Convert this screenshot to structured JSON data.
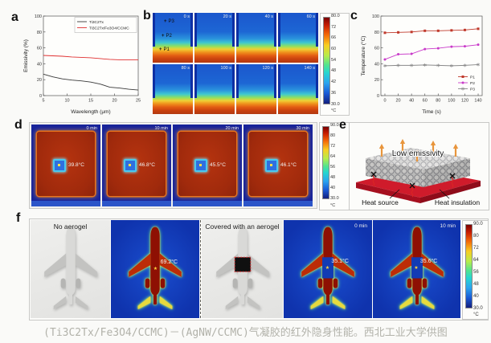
{
  "figure": {
    "caption": "(Ti3C2Tx/Fe3O4/CCMC)－(AgNW/CCMC)气凝胶的红外隐身性能。西北工业大学供图",
    "panels": {
      "a": {
        "label": "a"
      },
      "b": {
        "label": "b",
        "frames": [
          {
            "time": "0 s"
          },
          {
            "time": "20 s"
          },
          {
            "time": "40 s"
          },
          {
            "time": "60 s"
          },
          {
            "time": "80 s"
          },
          {
            "time": "100 s"
          },
          {
            "time": "120 s"
          },
          {
            "time": "140 s"
          }
        ],
        "markers": [
          {
            "symbol": "+",
            "label": "P3"
          },
          {
            "symbol": "+",
            "label": "P2"
          },
          {
            "symbol": "+",
            "label": "P1"
          }
        ],
        "colorbar": {
          "ticks": [
            "80.0",
            "72",
            "66",
            "60",
            "54",
            "48",
            "42",
            "36",
            "30.0"
          ],
          "unit": "°C"
        }
      },
      "c": {
        "label": "c"
      },
      "d": {
        "label": "d",
        "frames": [
          {
            "time": "0 min",
            "temp": "39.8°C"
          },
          {
            "time": "10 min",
            "temp": "46.8°C"
          },
          {
            "time": "20 min",
            "temp": "45.5°C"
          },
          {
            "time": "30 min",
            "temp": "46.1°C"
          }
        ],
        "colorbar": {
          "ticks": [
            "90.0",
            "80",
            "72",
            "64",
            "56",
            "48",
            "40",
            "30.0"
          ],
          "unit": "°C"
        }
      },
      "e": {
        "label": "e",
        "low_emissivity": "Low emissivity",
        "heat_source": "Heat source",
        "heat_insulation": "Heat insulation"
      },
      "f": {
        "label": "f",
        "photo1_title": "No aerogel",
        "thermal1_temp": "69.2°C",
        "photo2_title": "Covered with an aerogel",
        "frames": [
          {
            "time": "0 min",
            "temp": "35.1°C"
          },
          {
            "time": "10 min",
            "temp": "35.6°C"
          }
        ],
        "colorbar": {
          "ticks": [
            "90.0",
            "80",
            "72",
            "64",
            "56",
            "48",
            "40",
            "30.0"
          ],
          "unit": "°C"
        }
      }
    }
  },
  "chart_data": [
    {
      "id": "emissivity",
      "type": "line",
      "title": "",
      "xlabel": "Wavelength (μm)",
      "ylabel": "Emissivity (%)",
      "xlim": [
        5,
        25
      ],
      "ylim": [
        0,
        100
      ],
      "xticks": [
        5,
        10,
        15,
        20,
        25
      ],
      "yticks": [
        0,
        20,
        40,
        60,
        80,
        100
      ],
      "x": [
        5,
        7,
        9,
        11,
        13,
        15,
        17,
        19,
        21,
        23,
        25
      ],
      "series": [
        {
          "name": "Ti3C2Tx",
          "color": "#3a3a3a",
          "values": [
            27,
            23.5,
            21,
            19.5,
            18.5,
            17,
            14.5,
            10.5,
            9.5,
            8,
            7
          ]
        },
        {
          "name": "Ti3C2Tx/Fe3O4/CCMC",
          "color": "#e03030",
          "values": [
            50.5,
            50,
            49.5,
            48.5,
            48,
            47.5,
            46.5,
            45.5,
            45,
            45,
            45
          ]
        }
      ],
      "legend": {
        "pos": "tr",
        "w": 72,
        "box": true
      }
    },
    {
      "id": "temperature",
      "type": "line",
      "title": "",
      "xlabel": "Time (s)",
      "ylabel": "Temperature (°C)",
      "xlim": [
        -6,
        146
      ],
      "ylim": [
        0,
        100
      ],
      "xticks": [
        0,
        20,
        40,
        60,
        80,
        100,
        120,
        140
      ],
      "yticks": [
        0,
        20,
        40,
        60,
        80,
        100
      ],
      "x": [
        0,
        20,
        40,
        60,
        80,
        100,
        120,
        140
      ],
      "series": [
        {
          "name": "P1",
          "color": "#c0392b",
          "marker": "square",
          "values": [
            79,
            79.5,
            80,
            81.5,
            81.5,
            82,
            82.5,
            84
          ]
        },
        {
          "name": "P2",
          "color": "#c93ac9",
          "marker": "circle",
          "values": [
            45.5,
            52,
            52.5,
            58.5,
            59.5,
            61.5,
            62,
            64
          ]
        },
        {
          "name": "P3",
          "color": "#8a8a8a",
          "marker": "asterisk",
          "values": [
            37.5,
            38,
            38,
            38.5,
            38,
            37.5,
            38,
            39
          ]
        }
      ],
      "legend": {
        "pos": "br",
        "w": 26,
        "box": false
      }
    }
  ]
}
